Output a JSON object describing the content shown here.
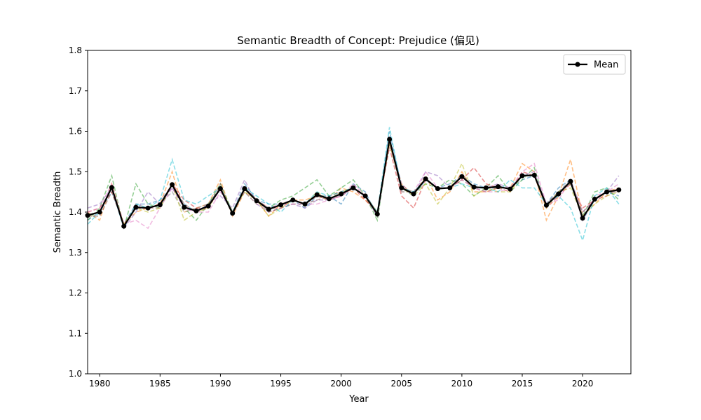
{
  "chart_data": {
    "type": "line",
    "title": "Semantic Breadth of Concept: Prejudice (偏见)",
    "xlabel": "Year",
    "ylabel": "Semantic Breadth",
    "xlim": [
      1979,
      2024
    ],
    "ylim": [
      1.0,
      1.8
    ],
    "xticks": [
      1980,
      1985,
      1990,
      1995,
      2000,
      2005,
      2010,
      2015,
      2020
    ],
    "yticks": [
      "1.0",
      "1.1",
      "1.2",
      "1.3",
      "1.4",
      "1.5",
      "1.6",
      "1.7",
      "1.8"
    ],
    "grid": false,
    "legend": {
      "position": "top-right",
      "entries": [
        "Mean"
      ]
    },
    "x": [
      1979,
      1980,
      1981,
      1982,
      1983,
      1984,
      1985,
      1986,
      1987,
      1988,
      1989,
      1990,
      1991,
      1992,
      1993,
      1994,
      1995,
      1996,
      1997,
      1998,
      1999,
      2000,
      2001,
      2002,
      2003,
      2004,
      2005,
      2006,
      2007,
      2008,
      2009,
      2010,
      2011,
      2012,
      2013,
      2014,
      2015,
      2016,
      2017,
      2018,
      2019,
      2020,
      2021,
      2022,
      2023
    ],
    "mean": {
      "name": "Mean",
      "color": "#000000",
      "values": [
        1.392,
        1.4,
        1.461,
        1.365,
        1.412,
        1.41,
        1.418,
        1.468,
        1.412,
        1.403,
        1.415,
        1.458,
        1.397,
        1.458,
        1.428,
        1.407,
        1.418,
        1.43,
        1.42,
        1.443,
        1.433,
        1.445,
        1.46,
        1.44,
        1.395,
        1.58,
        1.46,
        1.445,
        1.482,
        1.458,
        1.46,
        1.488,
        1.462,
        1.46,
        1.463,
        1.457,
        1.49,
        1.491,
        1.417,
        1.445,
        1.476,
        1.385,
        1.432,
        1.45,
        1.455
      ]
    },
    "runs": [
      {
        "color": "#1f77b4",
        "values": [
          1.38,
          1.4,
          1.45,
          1.37,
          1.42,
          1.42,
          1.43,
          1.46,
          1.42,
          1.4,
          1.42,
          1.46,
          1.4,
          1.47,
          1.43,
          1.42,
          1.42,
          1.43,
          1.41,
          1.44,
          1.44,
          1.42,
          1.47,
          1.45,
          1.39,
          1.6,
          1.46,
          1.44,
          1.48,
          1.46,
          1.47,
          1.49,
          1.47,
          1.46,
          1.46,
          1.46,
          1.48,
          1.49,
          1.42,
          1.46,
          1.48,
          1.38,
          1.43,
          1.45,
          1.44
        ]
      },
      {
        "color": "#ff7f0e",
        "values": [
          1.4,
          1.38,
          1.47,
          1.37,
          1.4,
          1.41,
          1.42,
          1.5,
          1.4,
          1.41,
          1.42,
          1.48,
          1.39,
          1.45,
          1.43,
          1.39,
          1.42,
          1.43,
          1.43,
          1.44,
          1.43,
          1.46,
          1.45,
          1.43,
          1.4,
          1.57,
          1.47,
          1.44,
          1.49,
          1.43,
          1.45,
          1.5,
          1.45,
          1.45,
          1.46,
          1.46,
          1.52,
          1.5,
          1.38,
          1.44,
          1.53,
          1.39,
          1.42,
          1.45,
          1.46
        ]
      },
      {
        "color": "#2ca02c",
        "values": [
          1.38,
          1.41,
          1.49,
          1.36,
          1.47,
          1.42,
          1.41,
          1.47,
          1.41,
          1.38,
          1.42,
          1.47,
          1.4,
          1.45,
          1.42,
          1.41,
          1.43,
          1.44,
          1.46,
          1.48,
          1.44,
          1.46,
          1.48,
          1.44,
          1.38,
          1.58,
          1.45,
          1.45,
          1.47,
          1.46,
          1.48,
          1.47,
          1.44,
          1.46,
          1.49,
          1.45,
          1.48,
          1.51,
          1.41,
          1.45,
          1.47,
          1.39,
          1.45,
          1.46,
          1.43
        ]
      },
      {
        "color": "#d62728",
        "values": [
          1.4,
          1.41,
          1.45,
          1.37,
          1.41,
          1.41,
          1.42,
          1.47,
          1.43,
          1.41,
          1.41,
          1.46,
          1.4,
          1.46,
          1.43,
          1.41,
          1.41,
          1.43,
          1.42,
          1.44,
          1.43,
          1.44,
          1.46,
          1.43,
          1.4,
          1.56,
          1.44,
          1.41,
          1.48,
          1.46,
          1.46,
          1.48,
          1.51,
          1.47,
          1.46,
          1.45,
          1.5,
          1.49,
          1.41,
          1.44,
          1.47,
          1.41,
          1.43,
          1.44,
          1.46
        ]
      },
      {
        "color": "#9467bd",
        "values": [
          1.41,
          1.42,
          1.46,
          1.36,
          1.4,
          1.45,
          1.42,
          1.46,
          1.41,
          1.4,
          1.42,
          1.44,
          1.41,
          1.48,
          1.42,
          1.4,
          1.41,
          1.42,
          1.41,
          1.43,
          1.43,
          1.44,
          1.46,
          1.44,
          1.39,
          1.58,
          1.47,
          1.44,
          1.5,
          1.49,
          1.46,
          1.49,
          1.46,
          1.46,
          1.47,
          1.46,
          1.49,
          1.5,
          1.42,
          1.44,
          1.48,
          1.4,
          1.43,
          1.45,
          1.49
        ]
      },
      {
        "color": "#8c564b",
        "values": [
          1.39,
          1.39,
          1.45,
          1.37,
          1.41,
          1.41,
          1.41,
          1.47,
          1.42,
          1.4,
          1.41,
          1.47,
          1.39,
          1.46,
          1.43,
          1.4,
          1.41,
          1.42,
          1.42,
          1.43,
          1.44,
          1.45,
          1.46,
          1.44,
          1.4,
          1.57,
          1.46,
          1.45,
          1.48,
          1.46,
          1.46,
          1.48,
          1.46,
          1.45,
          1.46,
          1.46,
          1.49,
          1.49,
          1.42,
          1.45,
          1.47,
          1.4,
          1.43,
          1.45,
          1.45
        ]
      },
      {
        "color": "#e377c2",
        "values": [
          1.4,
          1.41,
          1.47,
          1.37,
          1.38,
          1.36,
          1.41,
          1.46,
          1.41,
          1.4,
          1.4,
          1.45,
          1.4,
          1.45,
          1.42,
          1.41,
          1.42,
          1.42,
          1.42,
          1.42,
          1.43,
          1.44,
          1.47,
          1.44,
          1.39,
          1.58,
          1.45,
          1.45,
          1.5,
          1.46,
          1.46,
          1.48,
          1.46,
          1.45,
          1.45,
          1.46,
          1.5,
          1.52,
          1.42,
          1.43,
          1.48,
          1.38,
          1.44,
          1.45,
          1.47
        ]
      },
      {
        "color": "#7f7f7f",
        "values": [
          1.39,
          1.4,
          1.46,
          1.36,
          1.42,
          1.41,
          1.42,
          1.45,
          1.4,
          1.41,
          1.42,
          1.46,
          1.4,
          1.46,
          1.43,
          1.41,
          1.42,
          1.43,
          1.42,
          1.44,
          1.43,
          1.45,
          1.46,
          1.44,
          1.39,
          1.58,
          1.46,
          1.45,
          1.48,
          1.46,
          1.46,
          1.49,
          1.46,
          1.46,
          1.46,
          1.46,
          1.49,
          1.49,
          1.42,
          1.45,
          1.48,
          1.39,
          1.43,
          1.45,
          1.45
        ]
      },
      {
        "color": "#bcbd22",
        "values": [
          1.39,
          1.4,
          1.46,
          1.37,
          1.41,
          1.4,
          1.41,
          1.47,
          1.38,
          1.4,
          1.41,
          1.46,
          1.4,
          1.45,
          1.43,
          1.39,
          1.41,
          1.43,
          1.42,
          1.45,
          1.43,
          1.45,
          1.46,
          1.44,
          1.4,
          1.57,
          1.46,
          1.44,
          1.47,
          1.42,
          1.46,
          1.52,
          1.44,
          1.46,
          1.45,
          1.45,
          1.49,
          1.49,
          1.41,
          1.45,
          1.46,
          1.39,
          1.42,
          1.44,
          1.45
        ]
      },
      {
        "color": "#17becf",
        "values": [
          1.37,
          1.4,
          1.46,
          1.36,
          1.42,
          1.41,
          1.43,
          1.53,
          1.43,
          1.42,
          1.44,
          1.46,
          1.4,
          1.46,
          1.44,
          1.42,
          1.4,
          1.43,
          1.42,
          1.45,
          1.44,
          1.45,
          1.46,
          1.44,
          1.4,
          1.61,
          1.46,
          1.45,
          1.48,
          1.46,
          1.46,
          1.47,
          1.46,
          1.46,
          1.45,
          1.48,
          1.46,
          1.46,
          1.42,
          1.44,
          1.41,
          1.33,
          1.44,
          1.46,
          1.42
        ]
      }
    ]
  }
}
